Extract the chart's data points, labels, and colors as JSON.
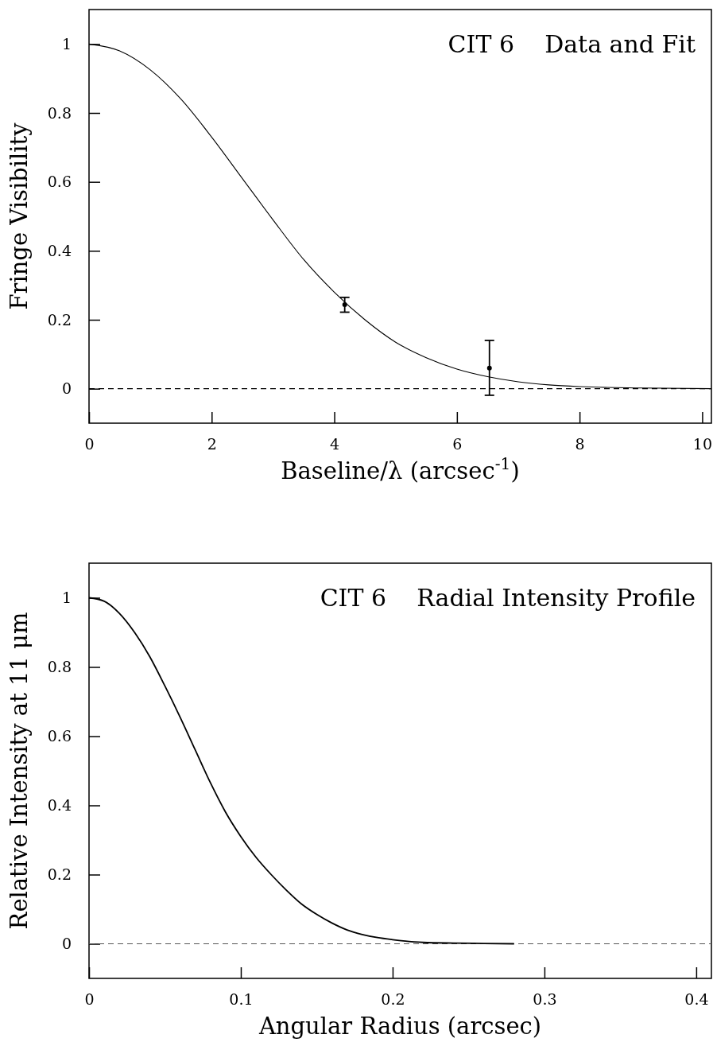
{
  "chart_data": [
    {
      "type": "line",
      "title": "CIT 6    Data and Fit",
      "xlabel": "Baseline/λ (arcsec$^{-1}$)",
      "ylabel": "Fringe Visibility",
      "xlim": [
        0,
        10.15
      ],
      "xticks": [
        0,
        2,
        4,
        6,
        8,
        10
      ],
      "ylim": [
        -0.1,
        1.1
      ],
      "yticks": [
        0,
        0.2,
        0.4,
        0.6,
        0.8,
        1
      ],
      "grid": false,
      "ref_lines": [
        {
          "axis": "y",
          "value": 0,
          "color": "#000000",
          "line_style": "dashed"
        }
      ],
      "series": [
        {
          "color": "#000000",
          "line_style": "solid",
          "x": [
            0,
            0.5,
            1,
            1.5,
            2,
            2.5,
            3,
            3.5,
            4,
            4.5,
            5,
            5.5,
            6,
            6.5,
            7,
            7.5,
            8,
            9,
            10.15
          ],
          "values": [
            1,
            0.98,
            0.925,
            0.84,
            0.73,
            0.61,
            0.49,
            0.375,
            0.28,
            0.2,
            0.135,
            0.09,
            0.057,
            0.035,
            0.02,
            0.011,
            0.006,
            0.002,
            0
          ]
        },
        {
          "type": "scatter",
          "color": "#000000",
          "marker": "circle",
          "x": [
            4.17,
            6.53
          ],
          "values": [
            0.244,
            0.06
          ],
          "errors": [
            [
              0.222,
              0.265
            ],
            [
              -0.019,
              0.14
            ]
          ]
        }
      ]
    },
    {
      "type": "line",
      "title": "CIT 6    Radial Intensity Profile",
      "xlabel": "Angular Radius (arcsec)",
      "ylabel": "Relative Intensity at 11 μm",
      "xlim": [
        0,
        0.41
      ],
      "xticks": [
        0,
        0.1,
        0.2,
        0.3,
        0.4
      ],
      "ylim": [
        -0.1,
        1.1
      ],
      "yticks": [
        0,
        0.2,
        0.4,
        0.6,
        0.8,
        1
      ],
      "grid": false,
      "ref_lines": [
        {
          "axis": "y",
          "value": 0,
          "color": "#555555",
          "line_style": "dashed"
        }
      ],
      "series": [
        {
          "color": "#000000",
          "line_style": "solid",
          "x": [
            0,
            0.01,
            0.02,
            0.03,
            0.04,
            0.05,
            0.06,
            0.07,
            0.08,
            0.09,
            0.1,
            0.11,
            0.12,
            0.13,
            0.14,
            0.15,
            0.16,
            0.17,
            0.18,
            0.19,
            0.2,
            0.22,
            0.24,
            0.26,
            0.28
          ],
          "values": [
            1,
            0.99,
            0.955,
            0.9,
            0.83,
            0.745,
            0.655,
            0.56,
            0.465,
            0.38,
            0.31,
            0.25,
            0.2,
            0.155,
            0.115,
            0.085,
            0.06,
            0.04,
            0.027,
            0.018,
            0.012,
            0.004,
            0.002,
            0.001,
            0
          ]
        }
      ]
    }
  ]
}
